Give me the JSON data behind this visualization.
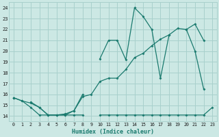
{
  "bg_color": "#cce8e4",
  "grid_color": "#a8d0cc",
  "line_color": "#1a7a6e",
  "xlabel": "Humidex (Indice chaleur)",
  "xlim": [
    -0.5,
    23.5
  ],
  "ylim": [
    13.5,
    24.5
  ],
  "xticks": [
    0,
    1,
    2,
    3,
    4,
    5,
    6,
    7,
    8,
    9,
    10,
    11,
    12,
    13,
    14,
    15,
    16,
    17,
    18,
    19,
    20,
    21,
    22,
    23
  ],
  "yticks": [
    14,
    15,
    16,
    17,
    18,
    19,
    20,
    21,
    22,
    23,
    24
  ],
  "line1_y": [
    15.7,
    15.4,
    14.8,
    14.1,
    14.1,
    14.1,
    14.1,
    14.1,
    14.1,
    null,
    14.1,
    14.1,
    14.1,
    14.1,
    14.1,
    14.1,
    14.1,
    14.1,
    14.1,
    14.1,
    14.1,
    14.1,
    14.1,
    14.8
  ],
  "line2_y": [
    15.7,
    15.4,
    15.2,
    14.8,
    14.1,
    14.1,
    14.2,
    14.5,
    15.8,
    16.0,
    17.2,
    17.5,
    17.5,
    18.3,
    19.4,
    19.8,
    20.5,
    21.1,
    21.5,
    22.1,
    22.0,
    22.5,
    21.0,
    null
  ],
  "line3_y": [
    15.7,
    null,
    15.3,
    14.8,
    14.1,
    14.1,
    14.1,
    14.5,
    16.0,
    null,
    19.3,
    21.0,
    21.0,
    19.2,
    24.0,
    23.2,
    22.0,
    17.5,
    21.5,
    null,
    22.0,
    20.0,
    16.5,
    null
  ]
}
